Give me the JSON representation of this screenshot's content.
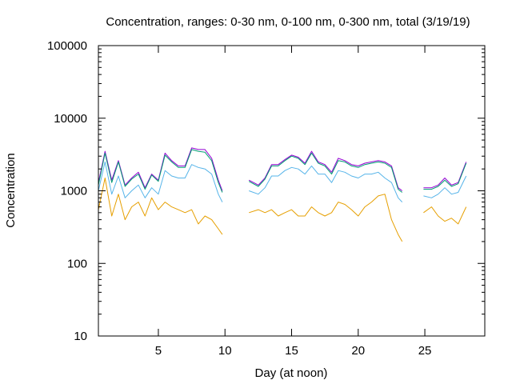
{
  "chart_data": {
    "type": "line",
    "title": "Concentration, ranges: 0-30 nm, 0-100 nm, 0-300 nm, total (3/19/19)",
    "xlabel": "Day (at noon)",
    "ylabel": "Concentration",
    "xlim": [
      0.5,
      29.5
    ],
    "ylim": [
      10,
      100000
    ],
    "yscale": "log",
    "x_ticks": [
      5,
      10,
      15,
      20,
      25
    ],
    "y_ticks": [
      10,
      100,
      1000,
      10000,
      100000
    ],
    "y_tick_labels": [
      "10",
      "100",
      "1000",
      "10000",
      "100000"
    ],
    "grid": false,
    "segments": [
      [
        0.5,
        9.8
      ],
      [
        11.8,
        23.3
      ],
      [
        24.9,
        28.1
      ]
    ],
    "series": [
      {
        "color": "#9400d3",
        "x": [
          0.5,
          1,
          1.5,
          2,
          2.5,
          3,
          3.5,
          4,
          4.5,
          5,
          5.5,
          6,
          6.5,
          7,
          7.5,
          8,
          8.5,
          9,
          9.5,
          9.8,
          11.8,
          12.5,
          13,
          13.5,
          14,
          14.5,
          15,
          15.5,
          16,
          16.5,
          17,
          17.5,
          18,
          18.5,
          19,
          19.5,
          20,
          20.5,
          21,
          21.5,
          22,
          22.5,
          23,
          23.3,
          24.9,
          25.5,
          26,
          26.5,
          27,
          27.5,
          28.1
        ],
        "values": [
          1300,
          3500,
          1400,
          2600,
          1200,
          1500,
          1800,
          1100,
          1700,
          1400,
          3300,
          2600,
          2200,
          2200,
          3900,
          3700,
          3700,
          2800,
          1400,
          1000,
          1400,
          1200,
          1500,
          2300,
          2300,
          2700,
          3100,
          2900,
          2400,
          3500,
          2500,
          2300,
          1800,
          2800,
          2600,
          2300,
          2200,
          2400,
          2500,
          2600,
          2500,
          2200,
          1100,
          1000,
          1100,
          1100,
          1200,
          1500,
          1200,
          1300,
          2500
        ]
      },
      {
        "color": "#009e73",
        "x": [
          0.5,
          1,
          1.5,
          2,
          2.5,
          3,
          3.5,
          4,
          4.5,
          5,
          5.5,
          6,
          6.5,
          7,
          7.5,
          8,
          8.5,
          9,
          9.5,
          9.8,
          11.8,
          12.5,
          13,
          13.5,
          14,
          14.5,
          15,
          15.5,
          16,
          16.5,
          17,
          17.5,
          18,
          18.5,
          19,
          19.5,
          20,
          20.5,
          21,
          21.5,
          22,
          22.5,
          23,
          23.3,
          24.9,
          25.5,
          26,
          26.5,
          27,
          27.5,
          28.1
        ],
        "values": [
          1200,
          3300,
          1300,
          2500,
          1150,
          1450,
          1700,
          1050,
          1650,
          1350,
          3100,
          2500,
          2100,
          2100,
          3700,
          3500,
          3400,
          2600,
          1300,
          950,
          1350,
          1150,
          1450,
          2200,
          2200,
          2600,
          3000,
          2800,
          2300,
          3300,
          2400,
          2200,
          1700,
          2600,
          2500,
          2200,
          2100,
          2300,
          2400,
          2500,
          2400,
          2100,
          1050,
          950,
          1050,
          1050,
          1150,
          1400,
          1150,
          1250,
          2400
        ]
      },
      {
        "color": "#56b4e9",
        "x": [
          0.5,
          1,
          1.5,
          2,
          2.5,
          3,
          3.5,
          4,
          4.5,
          5,
          5.5,
          6,
          6.5,
          7,
          7.5,
          8,
          8.5,
          9,
          9.5,
          9.8,
          11.8,
          12.5,
          13,
          13.5,
          14,
          14.5,
          15,
          15.5,
          16,
          16.5,
          17,
          17.5,
          18,
          18.5,
          19,
          19.5,
          20,
          20.5,
          21,
          21.5,
          22,
          22.5,
          23,
          23.3,
          24.9,
          25.5,
          26,
          26.5,
          27,
          27.5,
          28.1
        ],
        "values": [
          1000,
          2500,
          900,
          1600,
          800,
          1000,
          1200,
          800,
          1100,
          900,
          1900,
          1600,
          1500,
          1500,
          2300,
          2100,
          2000,
          1700,
          900,
          700,
          1000,
          900,
          1100,
          1600,
          1600,
          1900,
          2100,
          2000,
          1700,
          2200,
          1700,
          1700,
          1300,
          1900,
          1800,
          1600,
          1500,
          1700,
          1700,
          1800,
          1500,
          1300,
          800,
          700,
          850,
          800,
          900,
          1100,
          900,
          950,
          1600
        ]
      },
      {
        "color": "#e69f00",
        "x": [
          0.5,
          1,
          1.5,
          2,
          2.5,
          3,
          3.5,
          4,
          4.5,
          5,
          5.5,
          6,
          6.5,
          7,
          7.5,
          8,
          8.5,
          9,
          9.5,
          9.8,
          11.8,
          12.5,
          13,
          13.5,
          14,
          14.5,
          15,
          15.5,
          16,
          16.5,
          17,
          17.5,
          18,
          18.5,
          19,
          19.5,
          20,
          20.5,
          21,
          21.5,
          22,
          22.5,
          23,
          23.3,
          24.9,
          25.5,
          26,
          26.5,
          27,
          27.5,
          28.1
        ],
        "values": [
          550,
          1500,
          450,
          900,
          400,
          600,
          700,
          450,
          800,
          550,
          700,
          600,
          550,
          500,
          550,
          350,
          450,
          400,
          300,
          250,
          500,
          550,
          500,
          550,
          450,
          500,
          550,
          450,
          450,
          600,
          500,
          450,
          500,
          700,
          650,
          550,
          450,
          600,
          700,
          850,
          900,
          400,
          250,
          200,
          500,
          600,
          450,
          380,
          420,
          350,
          600
        ]
      }
    ]
  }
}
